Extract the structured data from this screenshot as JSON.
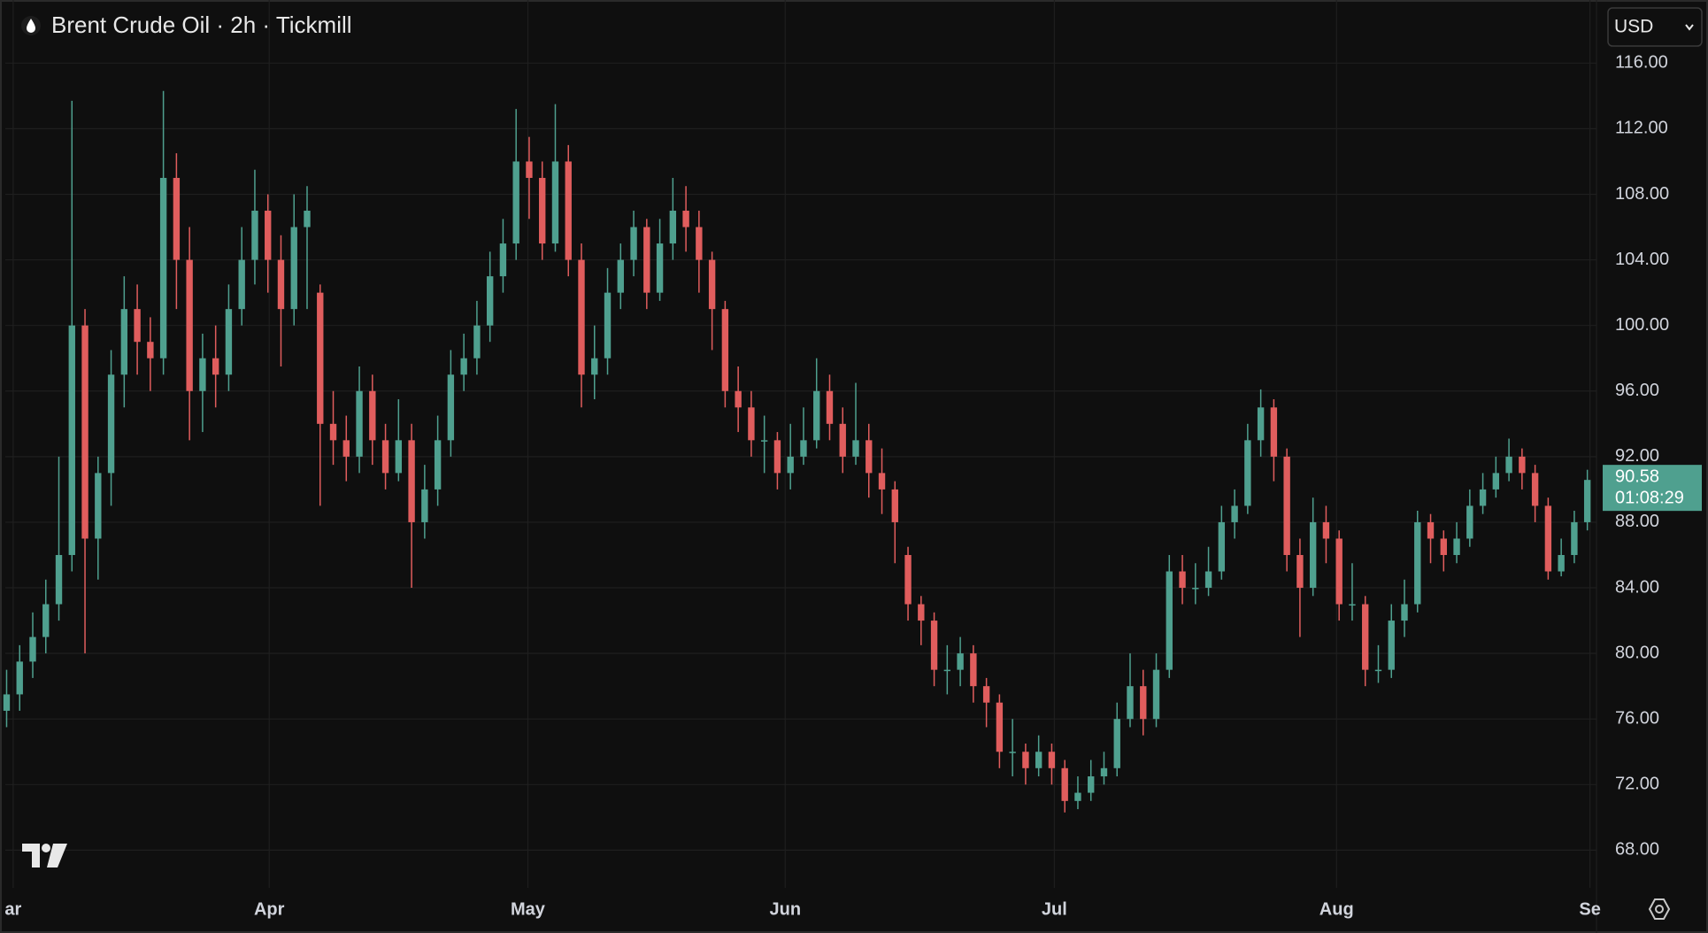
{
  "chart_data": {
    "type": "candlestick",
    "title": "Brent Crude Oil · 2h · Tickmill",
    "currency": "USD",
    "countdown": "01:08:29",
    "up_color": "#4fa08f",
    "down_color": "#e05d5d",
    "grid": true,
    "ylim": [
      65.7,
      119.85
    ],
    "yticks": [
      {
        "value": 68,
        "label": "68.00"
      },
      {
        "value": 72,
        "label": "72.00"
      },
      {
        "value": 76,
        "label": "76.00"
      },
      {
        "value": 80,
        "label": "80.00"
      },
      {
        "value": 84,
        "label": "84.00"
      },
      {
        "value": 88,
        "label": "88.00"
      },
      {
        "value": 92,
        "label": "92.00"
      },
      {
        "value": 96,
        "label": "96.00"
      },
      {
        "value": 100,
        "label": "100.00"
      },
      {
        "value": 104,
        "label": "104.00"
      },
      {
        "value": 108,
        "label": "108.00"
      },
      {
        "value": 112,
        "label": "112.00"
      },
      {
        "value": 116,
        "label": "116.00"
      }
    ],
    "xlim": [
      -0.1,
      121.7
    ],
    "xticks": [
      {
        "value": 0.5,
        "label": "ar"
      },
      {
        "value": 20.1,
        "label": "Apr"
      },
      {
        "value": 39.9,
        "label": "May"
      },
      {
        "value": 59.6,
        "label": "Jun"
      },
      {
        "value": 80.2,
        "label": "Jul"
      },
      {
        "value": 101.8,
        "label": "Aug"
      },
      {
        "value": 121.2,
        "label": "Se"
      }
    ],
    "open": [
      76.5,
      77.5,
      79.5,
      81,
      83,
      86,
      100,
      87,
      91,
      97,
      101,
      99,
      98,
      109,
      104,
      96,
      98,
      97,
      101,
      104,
      107,
      104,
      101,
      106,
      102,
      94,
      93,
      92,
      96,
      93,
      91,
      93,
      88,
      90,
      93,
      97,
      98,
      100,
      103,
      105,
      110,
      109,
      105,
      110,
      104,
      97,
      98,
      102,
      104,
      106,
      102,
      105,
      107,
      106,
      104,
      101,
      96,
      95,
      93,
      93,
      91,
      92,
      93,
      96,
      94,
      92,
      93,
      91,
      90,
      86,
      83,
      82,
      79,
      79,
      80,
      78,
      77,
      74,
      74,
      73,
      74,
      73,
      71,
      71.5,
      72.5,
      73,
      76,
      78,
      76,
      79,
      85,
      84,
      84,
      85,
      88,
      89,
      93,
      95,
      92,
      86,
      84,
      88,
      87,
      83,
      83,
      79,
      79,
      82,
      83,
      88,
      87,
      86,
      87,
      89,
      90,
      91,
      92,
      91,
      89,
      85,
      86,
      88
    ],
    "high": [
      79,
      80.5,
      82.5,
      84.5,
      92,
      113.7,
      101,
      92,
      98.5,
      103,
      102.5,
      100.5,
      114.3,
      110.5,
      106,
      99.5,
      100,
      102.5,
      106,
      109.5,
      108,
      105.5,
      108,
      108.5,
      102.5,
      96,
      94.5,
      97.5,
      97,
      94,
      95.5,
      94,
      91.5,
      94.5,
      98.5,
      99.5,
      101.5,
      104.5,
      106.5,
      113.2,
      111.5,
      110,
      113.5,
      111,
      105,
      100,
      103.5,
      105,
      107,
      106.5,
      106.5,
      109,
      108.5,
      107,
      104.5,
      101.5,
      97.5,
      96,
      94.5,
      93.5,
      94,
      95,
      98,
      97,
      95,
      96.5,
      94,
      92.5,
      90.5,
      86.5,
      83.5,
      82.5,
      80.5,
      81,
      80.5,
      78.5,
      77.5,
      76,
      74.5,
      75,
      74.5,
      73.5,
      72.5,
      73.5,
      74,
      77,
      80,
      79,
      80,
      86,
      86,
      85.5,
      86.5,
      89,
      90,
      94,
      96.1,
      95.5,
      92.5,
      87,
      89.5,
      89,
      87.5,
      85.5,
      83.5,
      80.5,
      83,
      84.5,
      88.7,
      88.5,
      87.5,
      88,
      90,
      91,
      92,
      93.1,
      92.5,
      91.5,
      89.5,
      87,
      88.7,
      91.2
    ],
    "low": [
      75.5,
      76.5,
      78.5,
      80,
      82,
      85,
      80,
      84.5,
      89,
      95,
      97,
      96,
      97,
      101,
      93,
      93.5,
      95,
      96,
      100,
      102.5,
      102,
      97.5,
      100,
      101,
      89,
      91.5,
      90.5,
      91,
      91.5,
      90,
      90.5,
      84,
      87,
      89,
      92,
      96,
      97,
      99,
      102,
      104,
      106.5,
      104,
      104.5,
      103,
      95,
      95.5,
      97,
      101,
      103,
      101,
      101.5,
      104,
      104.5,
      102,
      98.5,
      95,
      93.5,
      92,
      91,
      90,
      90,
      91.5,
      92.5,
      93,
      91,
      91.5,
      89.5,
      88.5,
      85.5,
      82,
      80.5,
      78,
      77.5,
      78,
      77,
      75.5,
      73,
      72.5,
      72,
      72.5,
      72,
      70.3,
      70.5,
      71,
      72,
      72.5,
      75.5,
      75,
      75.5,
      78.5,
      83,
      83,
      83.5,
      84.5,
      87,
      88.5,
      92,
      90.5,
      85,
      81,
      83.5,
      85.5,
      82,
      82,
      78,
      78.2,
      78.5,
      81,
      82.5,
      85.5,
      85,
      85.5,
      86.5,
      88.5,
      89.5,
      90.5,
      90,
      88,
      84.5,
      84.7,
      85.5,
      87.5
    ],
    "close": [
      77.5,
      79.5,
      81,
      83,
      86,
      100,
      87,
      91,
      97,
      101,
      99,
      98,
      109,
      104,
      96,
      98,
      97,
      101,
      104,
      107,
      104,
      101,
      106,
      107,
      94,
      93,
      92,
      96,
      93,
      91,
      93,
      88,
      90,
      93,
      97,
      98,
      100,
      103,
      105,
      110,
      109,
      105,
      110,
      104,
      97,
      98,
      102,
      104,
      106,
      102,
      105,
      107,
      106,
      104,
      101,
      96,
      95,
      93,
      93,
      91,
      92,
      93,
      96,
      94,
      92,
      93,
      91,
      90,
      88,
      83,
      82,
      79,
      79,
      80,
      78,
      77,
      74,
      74,
      73,
      74,
      73,
      71,
      71.5,
      72.5,
      73,
      76,
      78,
      76,
      79,
      85,
      84,
      84,
      85,
      88,
      89,
      93,
      95,
      92,
      86,
      84,
      88,
      87,
      83,
      83,
      79,
      79,
      82,
      83,
      88,
      87,
      86,
      87,
      89,
      90,
      91,
      92,
      91,
      89,
      85,
      86,
      88,
      90.58
    ]
  }
}
